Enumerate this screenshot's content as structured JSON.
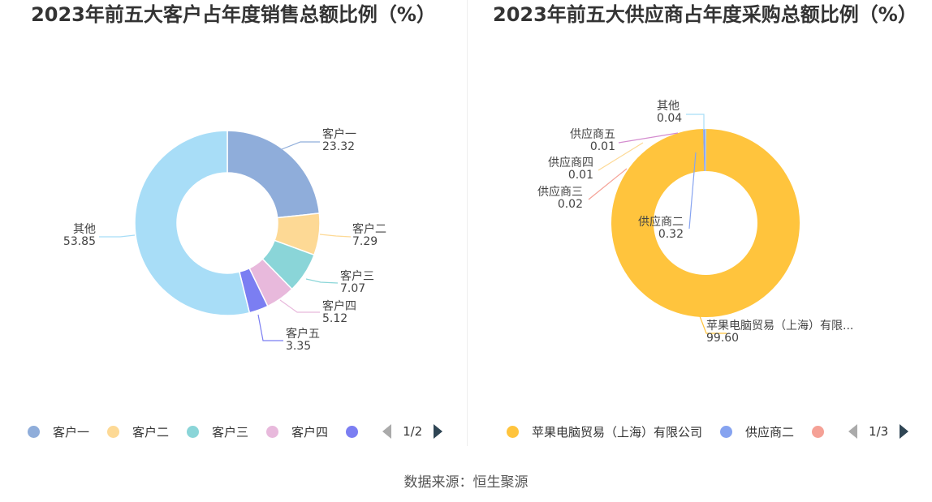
{
  "source": "数据来源：恒生聚源",
  "chart_data": [
    {
      "type": "pie",
      "title": "2023年前五大客户占年度销售总额比例（%）",
      "slices": [
        {
          "label": "客户一",
          "value": 23.32,
          "value_label": "23.32",
          "color": "#8fadda"
        },
        {
          "label": "客户二",
          "value": 7.29,
          "value_label": "7.29",
          "color": "#fdd995"
        },
        {
          "label": "客户三",
          "value": 7.07,
          "value_label": "7.07",
          "color": "#8ad5d8"
        },
        {
          "label": "客户四",
          "value": 5.12,
          "value_label": "5.12",
          "color": "#e8b9dc"
        },
        {
          "label": "客户五",
          "value": 3.35,
          "value_label": "3.35",
          "color": "#7b7ef2"
        },
        {
          "label": "其他",
          "value": 53.85,
          "value_label": "53.85",
          "color": "#a8ddf7"
        }
      ],
      "legend": {
        "placement": "bottom",
        "visible_items": [
          {
            "label": "客户一",
            "color": "#8fadda"
          },
          {
            "label": "客户二",
            "color": "#fdd995"
          },
          {
            "label": "客户三",
            "color": "#8ad5d8"
          },
          {
            "label": "客户四",
            "color": "#e8b9dc"
          },
          {
            "label": "",
            "color": "#7b7ef2"
          }
        ],
        "page": "1/2"
      }
    },
    {
      "type": "pie",
      "title": "2023年前五大供应商占年度采购总额比例（%）",
      "slices": [
        {
          "label": "苹果电脑贸易（上海）有限...",
          "value": 99.6,
          "value_label": "99.60",
          "color": "#ffc43d"
        },
        {
          "label": "供应商二",
          "value": 0.32,
          "value_label": "0.32",
          "color": "#86a3f0"
        },
        {
          "label": "供应商三",
          "value": 0.02,
          "value_label": "0.02",
          "color": "#f5a196"
        },
        {
          "label": "供应商四",
          "value": 0.01,
          "value_label": "0.01",
          "color": "#fdd995"
        },
        {
          "label": "供应商五",
          "value": 0.01,
          "value_label": "0.01",
          "color": "#d48ccf"
        },
        {
          "label": "其他",
          "value": 0.04,
          "value_label": "0.04",
          "color": "#a8ddf7"
        }
      ],
      "legend": {
        "placement": "bottom",
        "visible_items": [
          {
            "label": "苹果电脑贸易（上海）有限公司",
            "color": "#ffc43d"
          },
          {
            "label": "供应商二",
            "color": "#86a3f0"
          },
          {
            "label": "",
            "color": "#f5a196"
          }
        ],
        "page": "1/3"
      }
    }
  ]
}
